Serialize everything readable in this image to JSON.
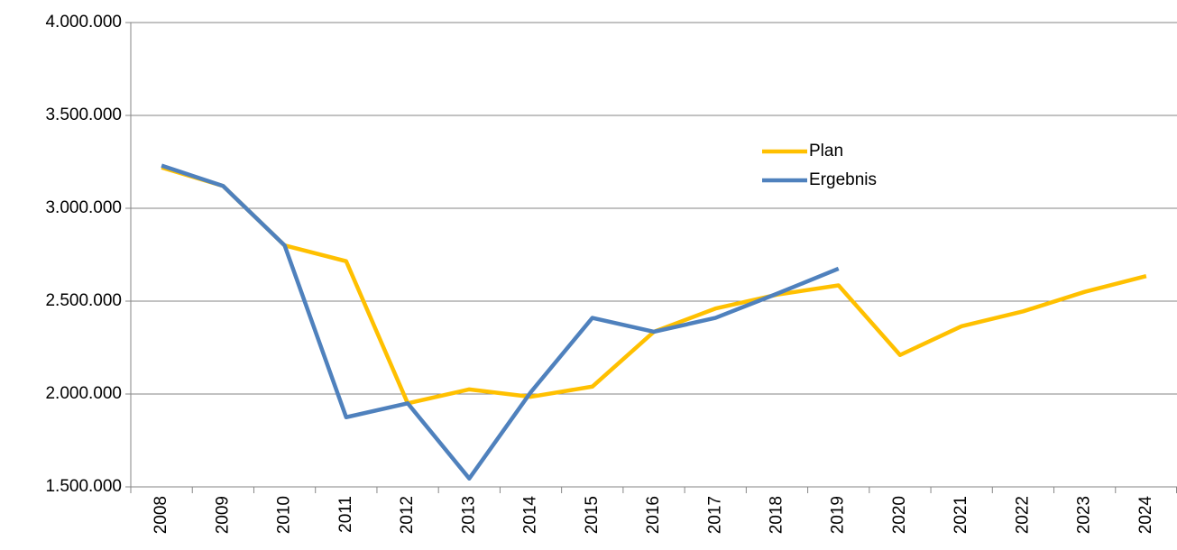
{
  "chart_data": {
    "type": "line",
    "categories": [
      "2008",
      "2009",
      "2010",
      "2011",
      "2012",
      "2013",
      "2014",
      "2015",
      "2016",
      "2017",
      "2018",
      "2019",
      "2020",
      "2021",
      "2022",
      "2023",
      "2024"
    ],
    "series": [
      {
        "name": "Plan",
        "color": "#FFC000",
        "values": [
          3220000,
          3120000,
          2800000,
          2715000,
          1950000,
          2025000,
          1985000,
          2040000,
          2335000,
          2460000,
          2535000,
          2585000,
          2210000,
          2365000,
          2445000,
          2550000,
          2635000
        ]
      },
      {
        "name": "Ergebnis",
        "color": "#4F81BD",
        "values": [
          3230000,
          3120000,
          2800000,
          1875000,
          1950000,
          1545000,
          2010000,
          2410000,
          2335000,
          2410000,
          2540000,
          2675000,
          null,
          null,
          null,
          null,
          null
        ]
      }
    ],
    "ylim": [
      1500000,
      4000000
    ],
    "yticks": [
      {
        "value": 1500000,
        "label": "1.500.000"
      },
      {
        "value": 2000000,
        "label": "2.000.000"
      },
      {
        "value": 2500000,
        "label": "2.500.000"
      },
      {
        "value": 3000000,
        "label": "3.000.000"
      },
      {
        "value": 3500000,
        "label": "3.500.000"
      },
      {
        "value": 4000000,
        "label": "4.000.000"
      }
    ],
    "grid": true,
    "legend": "upper right"
  }
}
